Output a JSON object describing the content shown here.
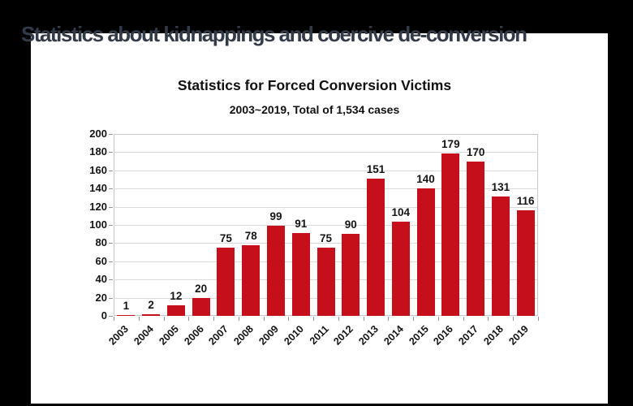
{
  "slide": {
    "title": "Statistics about kidnappings and coercive de-conversion",
    "title_color": "#343b48",
    "frame_color": "#000000",
    "content_background": "#ffffff"
  },
  "chart_data": {
    "type": "bar",
    "title": "Statistics for Forced Conversion Victims",
    "subtitle": "2003~2019, Total of 1,534 cases",
    "categories": [
      "2003",
      "2004",
      "2005",
      "2006",
      "2007",
      "2008",
      "2009",
      "2010",
      "2011",
      "2012",
      "2013",
      "2014",
      "2015",
      "2016",
      "2017",
      "2018",
      "2019"
    ],
    "values": [
      1,
      2,
      12,
      20,
      75,
      78,
      99,
      91,
      75,
      90,
      151,
      104,
      140,
      179,
      170,
      131,
      116
    ],
    "total_cases": "1,534",
    "xlabel": "",
    "ylabel": "",
    "ylim": [
      0,
      200
    ],
    "ytick_step": 20,
    "grid": true,
    "legend": "none",
    "bar_color": "#c50f1b",
    "gridline_color": "#d9d9d9",
    "axis_color": "#c6cacd",
    "tick_color": "#8e959c",
    "text_color": "#141414"
  }
}
